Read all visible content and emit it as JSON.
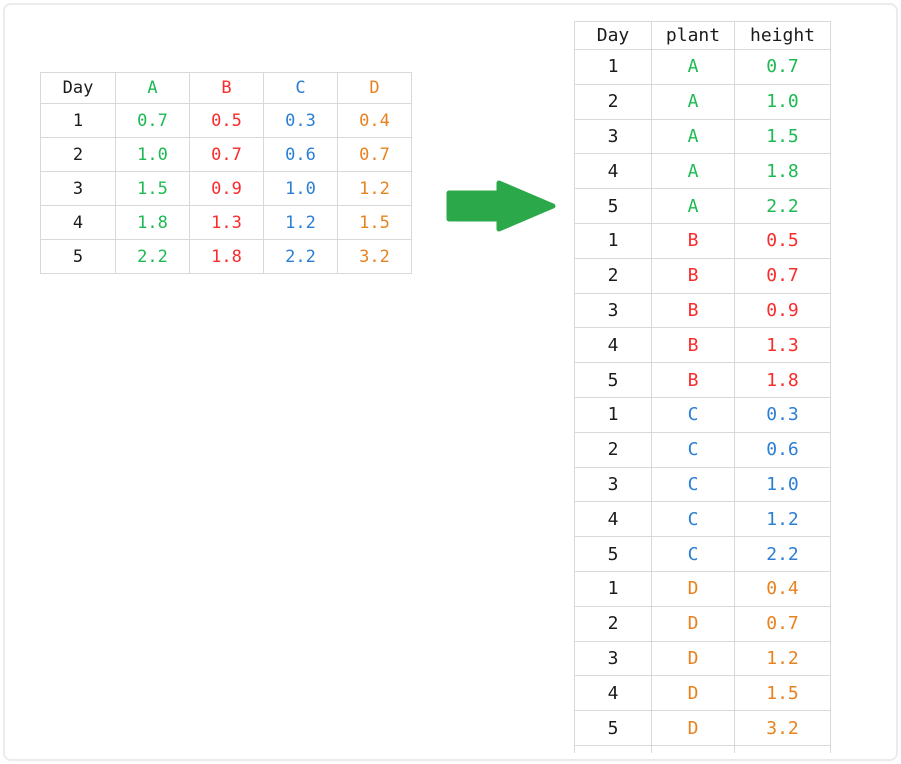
{
  "colors": {
    "page_border": "#ebebeb",
    "grid_line": "#d9d9d9",
    "text_dark": "#1b1b1b",
    "plant_a_green": "#1cba53",
    "plant_b_red": "#fa2b2b",
    "plant_c_blue": "#2b7fd4",
    "plant_d_orange": "#e8821f",
    "arrow_green": "#2ba84a"
  },
  "wide_table": {
    "headers": [
      {
        "label": "Day",
        "color": "#1b1b1b"
      },
      {
        "label": "A",
        "color": "#1cba53"
      },
      {
        "label": "B",
        "color": "#fa2b2b"
      },
      {
        "label": "C",
        "color": "#2b7fd4"
      },
      {
        "label": "D",
        "color": "#e8821f"
      }
    ],
    "rows": [
      [
        "1",
        "0.7",
        "0.5",
        "0.3",
        "0.4"
      ],
      [
        "2",
        "1.0",
        "0.7",
        "0.6",
        "0.7"
      ],
      [
        "3",
        "1.5",
        "0.9",
        "1.0",
        "1.2"
      ],
      [
        "4",
        "1.8",
        "1.3",
        "1.2",
        "1.5"
      ],
      [
        "5",
        "2.2",
        "1.8",
        "2.2",
        "3.2"
      ]
    ]
  },
  "long_table": {
    "headers": [
      {
        "label": "Day",
        "color": "#1b1b1b"
      },
      {
        "label": "plant",
        "color": "#1b1b1b"
      },
      {
        "label": "height",
        "color": "#1b1b1b"
      }
    ],
    "rows": [
      {
        "day": "1",
        "plant": "A",
        "height": "0.7"
      },
      {
        "day": "2",
        "plant": "A",
        "height": "1.0"
      },
      {
        "day": "3",
        "plant": "A",
        "height": "1.5"
      },
      {
        "day": "4",
        "plant": "A",
        "height": "1.8"
      },
      {
        "day": "5",
        "plant": "A",
        "height": "2.2"
      },
      {
        "day": "1",
        "plant": "B",
        "height": "0.5"
      },
      {
        "day": "2",
        "plant": "B",
        "height": "0.7"
      },
      {
        "day": "3",
        "plant": "B",
        "height": "0.9"
      },
      {
        "day": "4",
        "plant": "B",
        "height": "1.3"
      },
      {
        "day": "5",
        "plant": "B",
        "height": "1.8"
      },
      {
        "day": "1",
        "plant": "C",
        "height": "0.3"
      },
      {
        "day": "2",
        "plant": "C",
        "height": "0.6"
      },
      {
        "day": "3",
        "plant": "C",
        "height": "1.0"
      },
      {
        "day": "4",
        "plant": "C",
        "height": "1.2"
      },
      {
        "day": "5",
        "plant": "C",
        "height": "2.2"
      },
      {
        "day": "1",
        "plant": "D",
        "height": "0.4"
      },
      {
        "day": "2",
        "plant": "D",
        "height": "0.7"
      },
      {
        "day": "3",
        "plant": "D",
        "height": "1.2"
      },
      {
        "day": "4",
        "plant": "D",
        "height": "1.5"
      },
      {
        "day": "5",
        "plant": "D",
        "height": "3.2"
      }
    ]
  },
  "arrow": {
    "meaning": "wide-to-long transform arrow",
    "color": "#2ba84a"
  }
}
